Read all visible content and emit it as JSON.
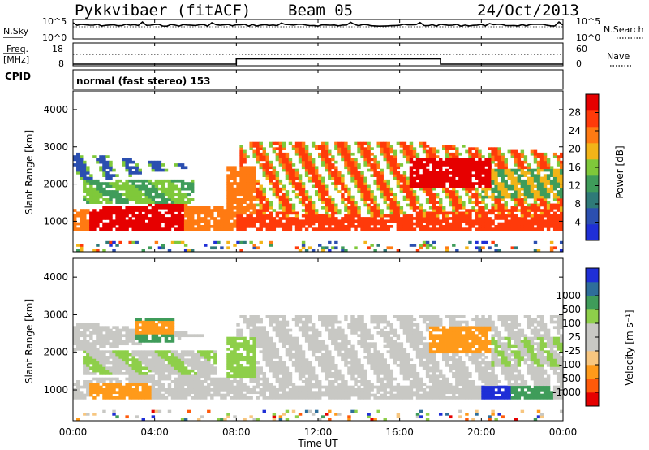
{
  "header": {
    "radar_title": "Pykkvibaer (fitACF)",
    "beam": "Beam 05",
    "date": "24/Oct/2013"
  },
  "top_panels": {
    "nsky_label": "N.Sky",
    "nsky_ticks": [
      "10^5",
      "10^0"
    ],
    "nsearch_label": "N.Search",
    "nsearch_ticks": [
      "10^5",
      "10^0"
    ],
    "freq_label": "Freq.",
    "freq_unit": "[MHz]",
    "freq_ticks": [
      "18",
      "8"
    ],
    "nave_label": "Nave",
    "nave_ticks": [
      "60",
      "0"
    ],
    "cpid_label": "CPID",
    "cpid_text": "normal (fast stereo) 153"
  },
  "colors": {
    "power_scale": [
      "#1f2fd6",
      "#2b4fb0",
      "#2f7a78",
      "#3f9c5a",
      "#7fc83a",
      "#f2b418",
      "#ff7a12",
      "#ff3a0a",
      "#e60000"
    ],
    "velocity_scale": [
      "#e60000",
      "#ff5a0a",
      "#ff9a1a",
      "#f7c680",
      "#c8c8c4",
      "#c8c8c4",
      "#8ecf4a",
      "#3f9c5a",
      "#2e6e9a",
      "#1f2fd6"
    ]
  },
  "chart_data": [
    {
      "type": "line",
      "name": "N.Sky / N.Search noise",
      "x": [
        0,
        2,
        4,
        6,
        8,
        10,
        12,
        14,
        16,
        18,
        20,
        22,
        24
      ],
      "series": [
        {
          "values": [
            100000.0,
            100000.0,
            100000.0,
            100000.0,
            100000.0,
            100000.0,
            100000.0,
            100000.0,
            100000.0,
            100000.0,
            100000.0,
            100000.0,
            100000.0
          ]
        }
      ],
      "y_ticks": [
        "10^5",
        "10^0"
      ]
    },
    {
      "type": "line",
      "name": "Freq / Nave",
      "x": [
        0,
        8,
        8,
        18,
        18,
        24
      ],
      "series": [
        {
          "values": [
            8.7,
            8.7,
            11.0,
            11.0,
            8.7,
            8.7
          ]
        }
      ],
      "ylim": [
        8,
        18
      ]
    },
    {
      "type": "heatmap",
      "ylabel": "Slant Range [km]",
      "x_ticks": [
        "00:00",
        "04:00",
        "08:00",
        "12:00",
        "16:00",
        "20:00",
        "00:00"
      ],
      "y_ticks": [
        1000,
        2000,
        3000,
        4000
      ],
      "ylim": [
        180,
        4500
      ],
      "xlim": [
        0,
        24
      ],
      "colorbar_label": "Power [dB]",
      "colorbar_ticks": [
        4,
        8,
        12,
        16,
        20,
        24,
        28
      ],
      "colorbar_range": [
        0,
        32
      ]
    },
    {
      "type": "heatmap",
      "ylabel": "Slant Range [km]",
      "xlabel": "Time UT",
      "x_ticks": [
        "00:00",
        "04:00",
        "08:00",
        "12:00",
        "16:00",
        "20:00",
        "00:00"
      ],
      "y_ticks": [
        1000,
        2000,
        3000,
        4000
      ],
      "ylim": [
        180,
        4500
      ],
      "xlim": [
        0,
        24
      ],
      "colorbar_label": "Velocity [m s⁻¹]",
      "colorbar_ticks": [
        "-1000",
        "-500",
        "-100",
        "-25",
        "25",
        "100",
        "500",
        "1000"
      ]
    }
  ]
}
